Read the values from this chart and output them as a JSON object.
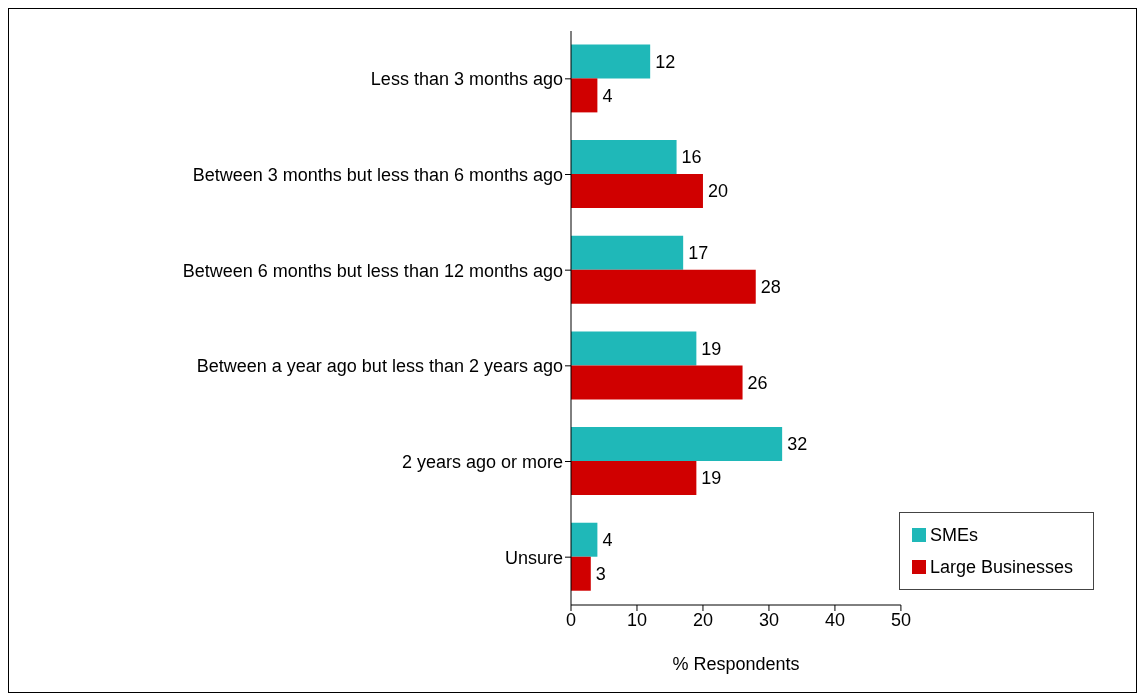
{
  "chart_data": {
    "type": "bar",
    "orientation": "horizontal",
    "xlabel": "% Respondents",
    "categories": [
      "Less than 3 months ago",
      "Between 3 months but less than 6 months ago",
      "Between 6 months but less than 12 months ago",
      "Between a year ago but less than 2 years ago",
      "2 years ago or more",
      "Unsure"
    ],
    "series": [
      {
        "name": "SMEs",
        "color": "#1fb8b8",
        "values": [
          12,
          16,
          17,
          19,
          32,
          4
        ]
      },
      {
        "name": "Large Businesses",
        "color": "#d00000",
        "values": [
          4,
          20,
          28,
          26,
          19,
          3
        ]
      }
    ],
    "xlim": [
      0,
      50
    ],
    "xticks": [
      0,
      10,
      20,
      30,
      40,
      50
    ],
    "data_labels": true,
    "grid": false,
    "legend": "bottom right"
  }
}
